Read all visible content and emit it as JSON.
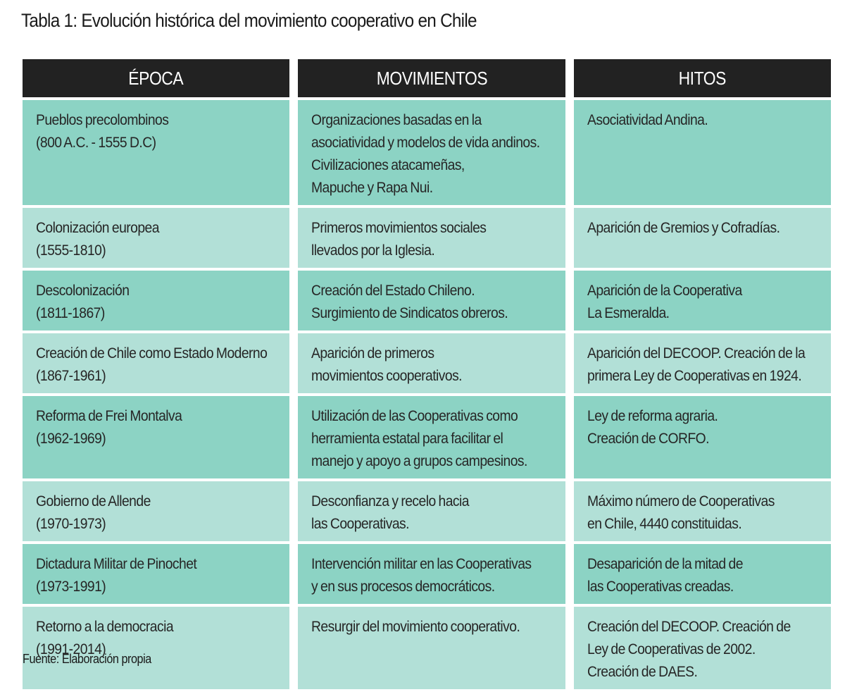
{
  "title": "Tabla 1: Evolución histórica del movimiento cooperativo en Chile",
  "headers": [
    "ÉPOCA",
    "MOVIMIENTOS",
    "HITOS"
  ],
  "rows": [
    {
      "epoca": [
        "Pueblos precolombinos",
        "(800 A.C. - 1555 D.C)"
      ],
      "movimientos": [
        "Organizaciones basadas en la",
        "asociatividad y modelos de vida andinos.",
        "Civilizaciones atacameñas,",
        "Mapuche y Rapa Nui."
      ],
      "hitos": [
        "Asociatividad Andina."
      ]
    },
    {
      "epoca": [
        "Colonización europea",
        "(1555-1810)"
      ],
      "movimientos": [
        "Primeros movimientos sociales",
        "llevados por la Iglesia."
      ],
      "hitos": [
        "Aparición de Gremios y Cofradías."
      ]
    },
    {
      "epoca": [
        "Descolonización",
        "(1811-1867)"
      ],
      "movimientos": [
        "Creación del Estado Chileno.",
        "Surgimiento de Sindicatos obreros."
      ],
      "hitos": [
        "Aparición de la Cooperativa",
        "La Esmeralda."
      ]
    },
    {
      "epoca": [
        "Creación de Chile como Estado Moderno",
        "(1867-1961)"
      ],
      "movimientos": [
        "Aparición de primeros",
        "movimientos cooperativos."
      ],
      "hitos": [
        "Aparición del DECOOP. Creación de la",
        "primera Ley de Cooperativas en 1924."
      ]
    },
    {
      "epoca": [
        "Reforma de Frei Montalva",
        "(1962-1969)"
      ],
      "movimientos": [
        "Utilización de las Cooperativas como",
        "herramienta estatal para facilitar el",
        "manejo y apoyo a grupos campesinos."
      ],
      "hitos": [
        "Ley de reforma agraria.",
        "Creación de CORFO."
      ]
    },
    {
      "epoca": [
        "Gobierno de Allende",
        "(1970-1973)"
      ],
      "movimientos": [
        "Desconfianza y recelo hacia",
        "las Cooperativas."
      ],
      "hitos": [
        "Máximo número de Cooperativas",
        "en Chile, 4440 constituidas."
      ]
    },
    {
      "epoca": [
        "Dictadura Militar de Pinochet",
        "(1973-1991)"
      ],
      "movimientos": [
        "Intervención militar en las Cooperativas",
        "y en sus procesos democráticos."
      ],
      "hitos": [
        "Desaparición de la mitad de",
        "las Cooperativas creadas."
      ]
    },
    {
      "epoca": [
        "Retorno a la democracia",
        "(1991-2014)"
      ],
      "movimientos": [
        "Resurgir del movimiento cooperativo."
      ],
      "hitos": [
        "Creación del DECOOP. Creación de",
        "Ley de Cooperativas de 2002.",
        "Creación de DAES."
      ]
    }
  ],
  "source": "Fuente: Elaboración propia",
  "colors": {
    "header_bg": "#222222",
    "row_dark": "#8cd3c4",
    "row_light": "#b2e0d7"
  }
}
